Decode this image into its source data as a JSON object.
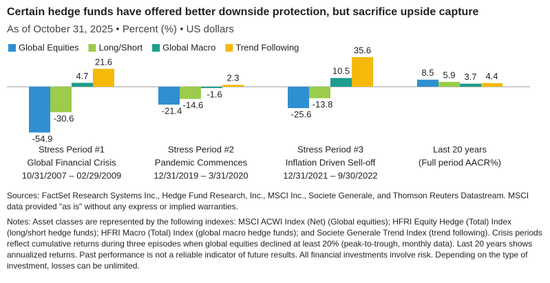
{
  "chart_data": {
    "type": "bar",
    "title": "Certain hedge funds have offered better downside protection, but sacrifice upside capture",
    "subtitle": "As of October 31, 2025 • Percent (%) • US dollars",
    "categories": [
      [
        "Stress Period #1",
        "Global Financial Crisis",
        "10/31/2007 – 02/29/2009"
      ],
      [
        "Stress Period #2",
        "Pandemic Commences",
        "12/31/2019 – 3/31/2020"
      ],
      [
        "Stress Period #3",
        "Inflation Driven Sell-off",
        "12/31/2021 – 9/30/2022"
      ],
      [
        "Last 20 years",
        "(Full period AACR%)"
      ]
    ],
    "series": [
      {
        "name": "Global Equities",
        "color": "#2e8fd1",
        "values": [
          -54.9,
          -21.4,
          -25.6,
          8.5
        ]
      },
      {
        "name": "Long/Short",
        "color": "#9bcc4b",
        "values": [
          -30.6,
          -14.6,
          -13.8,
          5.9
        ]
      },
      {
        "name": "Global Macro",
        "color": "#1e9c8d",
        "values": [
          4.7,
          -1.6,
          10.5,
          3.7
        ]
      },
      {
        "name": "Trend Following",
        "color": "#f5b90a",
        "values": [
          21.6,
          2.3,
          35.6,
          4.4
        ]
      }
    ]
  },
  "footnotes": {
    "sources": "Sources: FactSet Research Systems Inc., Hedge Fund Research, Inc., MSCI Inc., Societe Generale, and Thomson Reuters Datastream. MSCI data provided \"as is\" without any express or implied warranties.",
    "notes": "Notes: Asset classes are represented by the following indexes: MSCI ACWI Index (Net) (Global equities); HFRI Equity Hedge (Total) Index (long/short hedge funds); HFRI Macro (Total) Index (global macro hedge funds); and Societe Generale Trend Index (trend following). Crisis periods reflect cumulative returns during three episodes when global equities declined at least 20% (peak-to-trough, monthly data). Last 20 years shows annualized returns. Past performance is not a reliable indicator of future results. All financial investments involve risk. Depending on the type of investment, losses can be unlimited."
  }
}
